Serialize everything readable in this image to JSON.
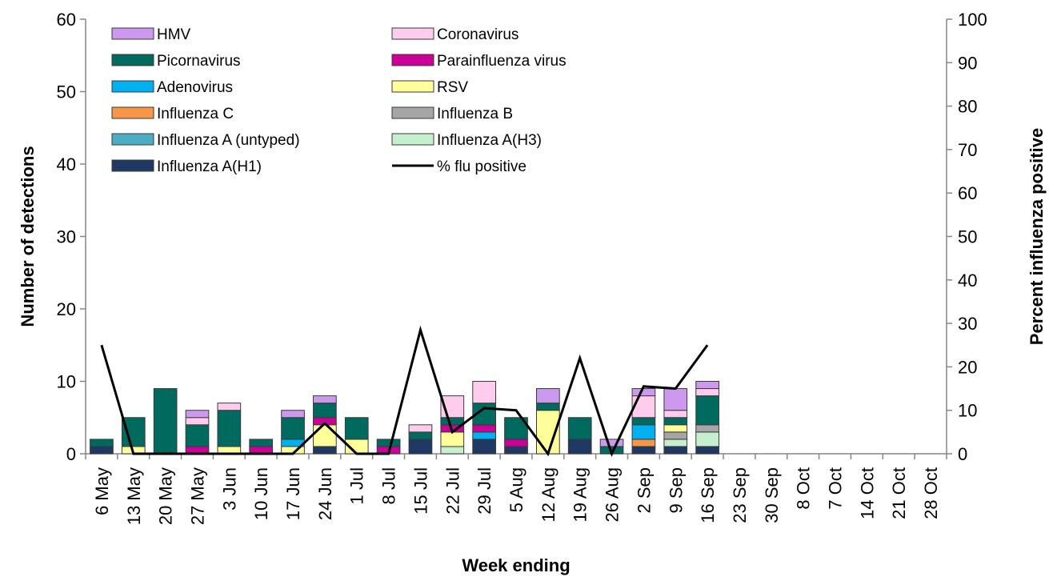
{
  "chart_data": {
    "type": "bar",
    "stacked": true,
    "xlabel": "Week ending",
    "ylabel": "Number of detections",
    "y2label": "Percent influenza positive",
    "ylim": [
      0,
      60
    ],
    "y2lim": [
      0,
      100
    ],
    "yticks": [
      "0",
      "10",
      "20",
      "30",
      "40",
      "50",
      "60"
    ],
    "y2ticks": [
      "0",
      "10",
      "20",
      "30",
      "40",
      "50",
      "60",
      "70",
      "80",
      "90",
      "100"
    ],
    "categories": [
      "6 May",
      "13 May",
      "20 May",
      "27 May",
      "3 Jun",
      "10 Jun",
      "17 Jun",
      "24 Jun",
      "1 Jul",
      "8 Jul",
      "15 Jul",
      "22 Jul",
      "29 Jul",
      "5 Aug",
      "12 Aug",
      "19 Aug",
      "26 Aug",
      "2 Sep",
      "9 Sep",
      "16 Sep",
      "23 Sep",
      "30 Sep",
      "8 Oct",
      "7 Oct",
      "14 Oct",
      "21 Oct",
      "28 Oct"
    ],
    "legend_placement": "top-left",
    "series": [
      {
        "name": "Influenza A(H1)",
        "color": "#1f3864",
        "values": [
          1,
          0,
          0,
          0,
          0,
          0,
          0,
          1,
          0,
          0,
          2,
          0,
          2,
          1,
          0,
          2,
          0,
          1,
          1,
          1,
          0,
          0,
          0,
          0,
          0,
          0,
          0
        ]
      },
      {
        "name": "Influenza A(H3)",
        "color": "#c6efce",
        "values": [
          0,
          0,
          0,
          0,
          0,
          0,
          0,
          0,
          0,
          0,
          0,
          1,
          0,
          0,
          0,
          0,
          0,
          0,
          1,
          2,
          0,
          0,
          0,
          0,
          0,
          0,
          0
        ]
      },
      {
        "name": "Influenza A (untyped)",
        "color": "#4bacc6",
        "values": [
          0,
          0,
          0,
          0,
          0,
          0,
          0,
          0,
          0,
          0,
          0,
          0,
          0,
          0,
          0,
          0,
          0,
          0,
          0,
          0,
          0,
          0,
          0,
          0,
          0,
          0,
          0
        ]
      },
      {
        "name": "Influenza B",
        "color": "#a6a6a6",
        "values": [
          0,
          0,
          0,
          0,
          0,
          0,
          0,
          0,
          0,
          0,
          0,
          0,
          0,
          0,
          0,
          0,
          0,
          0,
          1,
          1,
          0,
          0,
          0,
          0,
          0,
          0,
          0
        ]
      },
      {
        "name": "Influenza C",
        "color": "#f79646",
        "values": [
          0,
          0,
          0,
          0,
          0,
          0,
          0,
          0,
          0,
          0,
          0,
          0,
          0,
          0,
          0,
          0,
          0,
          1,
          0,
          0,
          0,
          0,
          0,
          0,
          0,
          0,
          0
        ]
      },
      {
        "name": "RSV",
        "color": "#ffff99",
        "values": [
          0,
          1,
          0,
          0,
          1,
          0,
          1,
          3,
          2,
          0,
          0,
          2,
          0,
          0,
          6,
          0,
          0,
          0,
          1,
          0,
          0,
          0,
          0,
          0,
          0,
          0,
          0
        ]
      },
      {
        "name": "Adenovirus",
        "color": "#00b0f0",
        "values": [
          0,
          0,
          0,
          0,
          0,
          0,
          1,
          0,
          0,
          0,
          0,
          0,
          1,
          0,
          0,
          0,
          0,
          2,
          0,
          0,
          0,
          0,
          0,
          0,
          0,
          0,
          0
        ]
      },
      {
        "name": "Parainfluenza virus",
        "color": "#cc0099",
        "values": [
          0,
          0,
          0,
          1,
          0,
          1,
          0,
          1,
          0,
          1,
          0,
          1,
          1,
          1,
          0,
          0,
          0,
          0,
          0,
          0,
          0,
          0,
          0,
          0,
          0,
          0,
          0
        ]
      },
      {
        "name": "Picornavirus",
        "color": "#006a5e",
        "values": [
          1,
          4,
          9,
          3,
          5,
          1,
          3,
          2,
          3,
          1,
          1,
          1,
          3,
          3,
          1,
          3,
          1,
          1,
          1,
          4,
          0,
          0,
          0,
          0,
          0,
          0,
          0
        ]
      },
      {
        "name": "Coronavirus",
        "color": "#ffccee",
        "values": [
          0,
          0,
          0,
          1,
          1,
          0,
          0,
          0,
          0,
          0,
          1,
          3,
          3,
          0,
          0,
          0,
          0,
          3,
          1,
          1,
          0,
          0,
          0,
          0,
          0,
          0,
          0
        ]
      },
      {
        "name": "HMV",
        "color": "#cc99ee",
        "values": [
          0,
          0,
          0,
          1,
          0,
          0,
          1,
          1,
          0,
          0,
          0,
          0,
          0,
          0,
          2,
          0,
          1,
          1,
          3,
          1,
          0,
          0,
          0,
          0,
          0,
          0,
          0
        ]
      }
    ],
    "line_series": {
      "name": "% flu positive",
      "color": "#000000",
      "axis": "right",
      "values": [
        25,
        0,
        0,
        0,
        0,
        0,
        0,
        7,
        0,
        0,
        28.5,
        5,
        10.5,
        10,
        0,
        22,
        0,
        15.5,
        15,
        25
      ]
    },
    "legend_order": [
      "HMV",
      "Coronavirus",
      "Picornavirus",
      "Parainfluenza virus",
      "Adenovirus",
      "RSV",
      "Influenza C",
      "Influenza B",
      "Influenza A (untyped)",
      "Influenza A(H3)",
      "Influenza A(H1)",
      "% flu positive"
    ]
  }
}
